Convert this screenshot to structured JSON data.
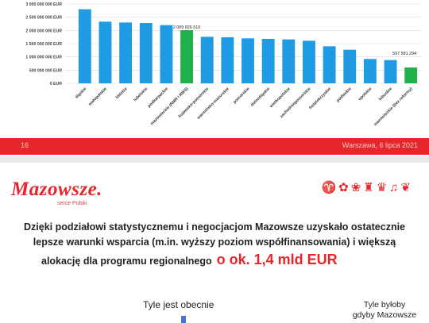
{
  "chart_data": {
    "type": "bar",
    "categories": [
      "śląskie",
      "małopolskie",
      "łódzkie",
      "lubelskie",
      "podkarpackie",
      "mazowieckie (RMR i RWS)",
      "kujawsko-pomorskie",
      "warmińsko-mazurskie",
      "pomorskie",
      "dolnośląskie",
      "wielkopolskie",
      "zachodniopomorskie",
      "świętokrzyskie",
      "podlaskie",
      "opolskie",
      "lubuskie",
      "mazowieckie (bez reformy)"
    ],
    "values": [
      2800000000,
      2330000000,
      2300000000,
      2280000000,
      2200000000,
      2009926510,
      1760000000,
      1740000000,
      1700000000,
      1680000000,
      1660000000,
      1610000000,
      1400000000,
      1270000000,
      920000000,
      880000000,
      597581294
    ],
    "highlight_colors": {
      "default": "#1e9be3",
      "highlight": "#1fb24a"
    },
    "highlighted": [
      5,
      16
    ],
    "data_labels": {
      "5": "2 009 926 510",
      "16": "597 581 294"
    },
    "yticks": [
      "3 000 000 000 EUR",
      "2 500 000 000 EUR",
      "2 000 000 000 EUR",
      "1 500 000 000 EUR",
      "1 000 000 000 EUR",
      "500 000 000 EUR",
      "0 EUR"
    ],
    "ylim": [
      0,
      3000000000
    ],
    "grid": true
  },
  "footer": {
    "page": "16",
    "place": "Warszawa, 6 lipca 2021"
  },
  "slide2": {
    "logo": "Mazowsze.",
    "logo_sub": "serce Polski",
    "emblems": "♈✿❀♜♛♫❦",
    "line1": "Dzięki podziałowi statystycznemu i negocjacjom Mazowsze uzyskało ostatecznie",
    "line2": "lepsze warunki wsparcia (m.in. wyższy poziom współfinansowania) i większą",
    "line3a": "alokację dla programu regionalnego",
    "line3b": "o ok. 1,4 mld EUR",
    "now_label": "Tyle jest obecnie",
    "would_label_1": "Tyle byłoby",
    "would_label_2": "gdyby Mazowsze"
  }
}
